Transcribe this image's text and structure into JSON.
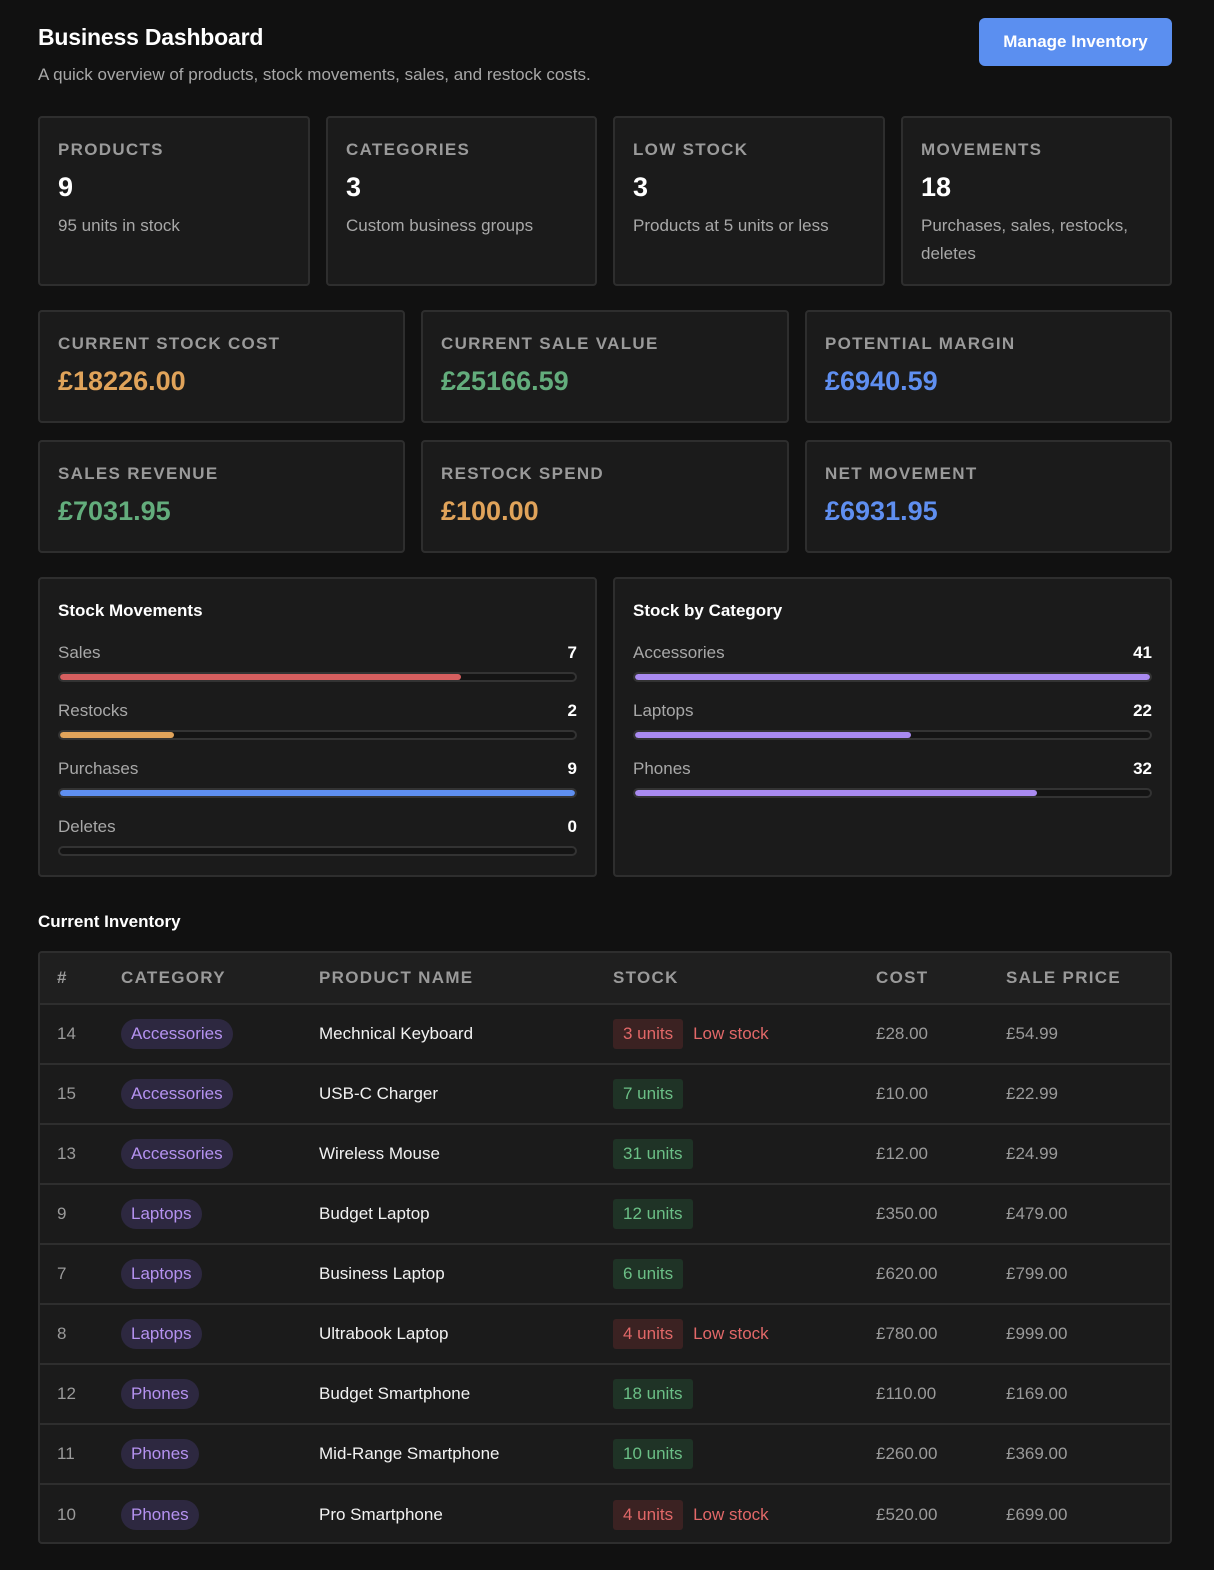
{
  "header": {
    "title": "Business Dashboard",
    "subtitle": "A quick overview of products, stock movements, sales, and restock costs.",
    "manage_button": "Manage Inventory"
  },
  "stats": [
    {
      "label": "PRODUCTS",
      "value": "9",
      "desc": "95 units in stock"
    },
    {
      "label": "CATEGORIES",
      "value": "3",
      "desc": "Custom business groups"
    },
    {
      "label": "LOW STOCK",
      "value": "3",
      "desc": "Products at 5 units or less"
    },
    {
      "label": "MOVEMENTS",
      "value": "18",
      "desc": "Purchases, sales, restocks, deletes"
    }
  ],
  "money": [
    {
      "label": "CURRENT STOCK COST",
      "value": "£18226.00",
      "color": "#e0a35a"
    },
    {
      "label": "CURRENT SALE VALUE",
      "value": "£25166.59",
      "color": "#63ad7c"
    },
    {
      "label": "POTENTIAL MARGIN",
      "value": "£6940.59",
      "color": "#5f8ff0"
    },
    {
      "label": "SALES REVENUE",
      "value": "£7031.95",
      "color": "#63ad7c"
    },
    {
      "label": "RESTOCK SPEND",
      "value": "£100.00",
      "color": "#e0a35a"
    },
    {
      "label": "NET MOVEMENT",
      "value": "£6931.95",
      "color": "#5f8ff0"
    }
  ],
  "stock_movements": {
    "title": "Stock Movements",
    "max": 9,
    "items": [
      {
        "label": "Sales",
        "value": 7,
        "color": "#d65f5f"
      },
      {
        "label": "Restocks",
        "value": 2,
        "color": "#e0a35a"
      },
      {
        "label": "Purchases",
        "value": 9,
        "color": "#5f8ff0"
      },
      {
        "label": "Deletes",
        "value": 0,
        "color": "#5f8ff0"
      }
    ]
  },
  "stock_by_category": {
    "title": "Stock by Category",
    "max": 41,
    "items": [
      {
        "label": "Accessories",
        "value": 41,
        "color": "#a98af0"
      },
      {
        "label": "Laptops",
        "value": 22,
        "color": "#a98af0"
      },
      {
        "label": "Phones",
        "value": 32,
        "color": "#a98af0"
      }
    ]
  },
  "inventory": {
    "title": "Current Inventory",
    "columns": [
      "#",
      "CATEGORY",
      "PRODUCT NAME",
      "STOCK",
      "COST",
      "SALE PRICE"
    ],
    "low_note": "Low stock",
    "rows": [
      {
        "id": "14",
        "category": "Accessories",
        "name": "Mechnical Keyboard",
        "stock": "3 units",
        "low": true,
        "cost": "£28.00",
        "price": "£54.99"
      },
      {
        "id": "15",
        "category": "Accessories",
        "name": "USB-C Charger",
        "stock": "7 units",
        "low": false,
        "cost": "£10.00",
        "price": "£22.99"
      },
      {
        "id": "13",
        "category": "Accessories",
        "name": "Wireless Mouse",
        "stock": "31 units",
        "low": false,
        "cost": "£12.00",
        "price": "£24.99"
      },
      {
        "id": "9",
        "category": "Laptops",
        "name": "Budget Laptop",
        "stock": "12 units",
        "low": false,
        "cost": "£350.00",
        "price": "£479.00"
      },
      {
        "id": "7",
        "category": "Laptops",
        "name": "Business Laptop",
        "stock": "6 units",
        "low": false,
        "cost": "£620.00",
        "price": "£799.00"
      },
      {
        "id": "8",
        "category": "Laptops",
        "name": "Ultrabook Laptop",
        "stock": "4 units",
        "low": true,
        "cost": "£780.00",
        "price": "£999.00"
      },
      {
        "id": "12",
        "category": "Phones",
        "name": "Budget Smartphone",
        "stock": "18 units",
        "low": false,
        "cost": "£110.00",
        "price": "£169.00"
      },
      {
        "id": "11",
        "category": "Phones",
        "name": "Mid-Range Smartphone",
        "stock": "10 units",
        "low": false,
        "cost": "£260.00",
        "price": "£369.00"
      },
      {
        "id": "10",
        "category": "Phones",
        "name": "Pro Smartphone",
        "stock": "4 units",
        "low": true,
        "cost": "£520.00",
        "price": "£699.00"
      }
    ]
  }
}
